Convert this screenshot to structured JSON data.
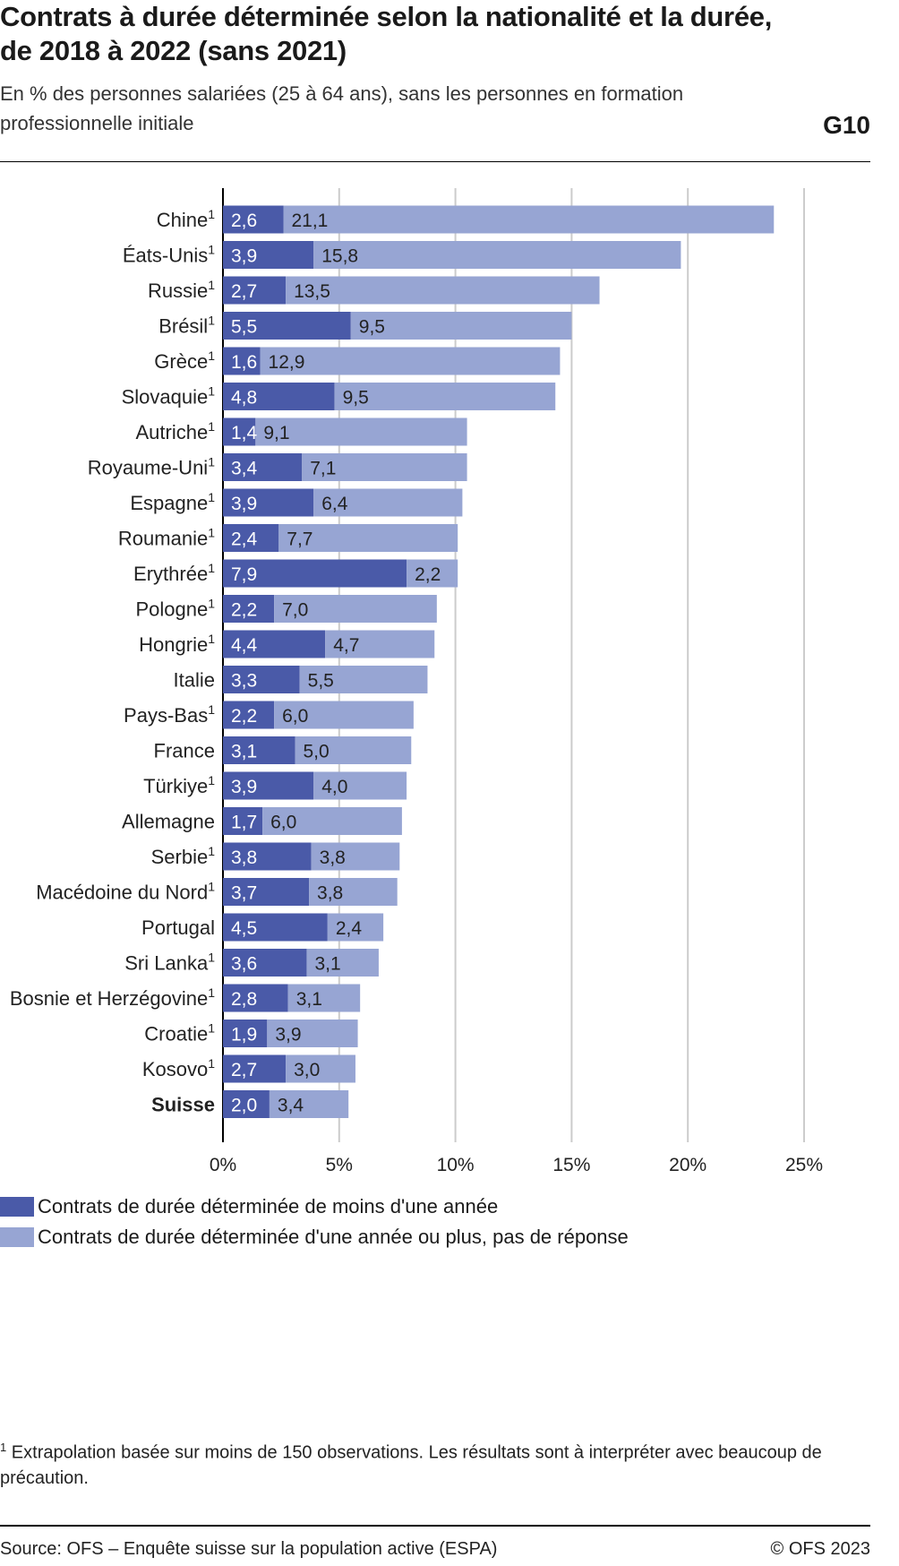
{
  "header": {
    "title": "Contrats à durée déterminée selon la nationalité et la durée, de 2018 à 2022 (sans 2021)",
    "subtitle": "En % des personnes salariées (25 à 64 ans), sans les personnes en formation professionnelle initiale",
    "code": "G10"
  },
  "colors": {
    "dark": "#4a5aa8",
    "light": "#97a5d3",
    "grid": "#cccccc"
  },
  "chart_data": {
    "type": "bar",
    "orientation": "horizontal",
    "stacked": true,
    "categories": [
      "Chine",
      "Éats-Unis",
      "Russie",
      "Brésil",
      "Grèce",
      "Slovaquie",
      "Autriche",
      "Royaume-Uni",
      "Espagne",
      "Roumanie",
      "Erythrée",
      "Pologne",
      "Hongrie",
      "Italie",
      "Pays-Bas",
      "France",
      "Türkiye",
      "Allemagne",
      "Serbie",
      "Macédoine du Nord",
      "Portugal",
      "Sri Lanka",
      "Bosnie et Herzégovine",
      "Croatie",
      "Kosovo",
      "Suisse"
    ],
    "footnote_marks": [
      "1",
      "1",
      "1",
      "1",
      "1",
      "1",
      "1",
      "1",
      "1",
      "1",
      "1",
      "1",
      "1",
      "",
      "1",
      "",
      "1",
      "",
      "1",
      "1",
      "",
      "1",
      "1",
      "1",
      "1",
      ""
    ],
    "bold_categories": [
      "Suisse"
    ],
    "series": [
      {
        "name": "Contrats de durée déterminée de moins d'une année",
        "color": "#4a5aa8",
        "values": [
          2.6,
          3.9,
          2.7,
          5.5,
          1.6,
          4.8,
          1.4,
          3.4,
          3.9,
          2.4,
          7.9,
          2.2,
          4.4,
          3.3,
          2.2,
          3.1,
          3.9,
          1.7,
          3.8,
          3.7,
          4.5,
          3.6,
          2.8,
          1.9,
          2.7,
          2.0
        ],
        "labels": [
          "2,6",
          "3,9",
          "2,7",
          "5,5",
          "1,6",
          "4,8",
          "1,4",
          "3,4",
          "3,9",
          "2,4",
          "7,9",
          "2,2",
          "4,4",
          "3,3",
          "2,2",
          "3,1",
          "3,9",
          "1,7",
          "3,8",
          "3,7",
          "4,5",
          "3,6",
          "2,8",
          "1,9",
          "2,7",
          "2,0"
        ]
      },
      {
        "name": "Contrats de durée déterminée d'une année ou plus, pas de réponse",
        "color": "#97a5d3",
        "values": [
          21.1,
          15.8,
          13.5,
          9.5,
          12.9,
          9.5,
          9.1,
          7.1,
          6.4,
          7.7,
          2.2,
          7.0,
          4.7,
          5.5,
          6.0,
          5.0,
          4.0,
          6.0,
          3.8,
          3.8,
          2.4,
          3.1,
          3.1,
          3.9,
          3.0,
          3.4
        ],
        "labels": [
          "21,1",
          "15,8",
          "13,5",
          "9,5",
          "12,9",
          "9,5",
          "9,1",
          "7,1",
          "6,4",
          "7,7",
          "2,2",
          "7,0",
          "4,7",
          "5,5",
          "6,0",
          "5,0",
          "4,0",
          "6,0",
          "3,8",
          "3,8",
          "2,4",
          "3,1",
          "3,1",
          "3,9",
          "3,0",
          "3,4"
        ]
      }
    ],
    "xlim": [
      0,
      25
    ],
    "xticks": [
      0,
      5,
      10,
      15,
      20,
      25
    ],
    "xtick_labels": [
      "0%",
      "5%",
      "10%",
      "15%",
      "20%",
      "25%"
    ],
    "grid": "vertical",
    "legend_position": "bottom"
  },
  "legend": {
    "items": [
      "Contrats de durée déterminée de moins d'une année",
      "Contrats de durée déterminée d'une année ou plus, pas de réponse"
    ]
  },
  "footer": {
    "footnote_mark": "1",
    "footnote": "Extrapolation basée sur moins de 150 observations. Les résultats sont à interpréter avec beaucoup de précaution.",
    "source": "Source: OFS – Enquête suisse sur la population active (ESPA)",
    "copyright": "© OFS 2023"
  }
}
